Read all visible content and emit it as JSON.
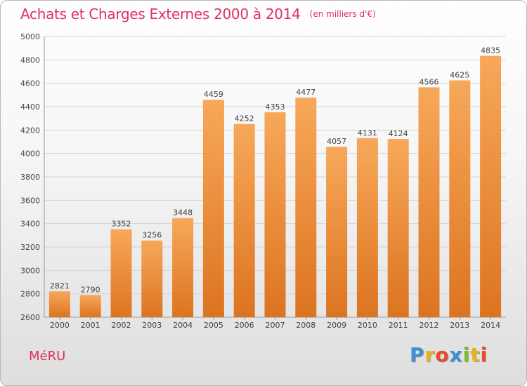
{
  "title": "Achats et Charges Externes 2000 à 2014",
  "subtitle": "(en milliers d'€)",
  "city": "MéRU",
  "logo": {
    "text": "Proxiti",
    "letters": [
      {
        "ch": "P",
        "color": "#3a8fd6"
      },
      {
        "ch": "r",
        "color": "#e8b21a"
      },
      {
        "ch": "o",
        "color": "#e84a2a"
      },
      {
        "ch": "x",
        "color": "#3a8fd6"
      },
      {
        "ch": "i",
        "color": "#7cbc2a"
      },
      {
        "ch": "t",
        "color": "#e8b21a"
      },
      {
        "ch": "i",
        "color": "#e84a2a"
      }
    ]
  },
  "colors": {
    "accent": "#e0315e",
    "bar_light": "#f7a85a",
    "bar_dark": "#dc7420",
    "grid": "#d4d4d4",
    "axis": "#9a9a9a"
  },
  "chart_data": {
    "type": "bar",
    "categories": [
      "2000",
      "2001",
      "2002",
      "2003",
      "2004",
      "2005",
      "2006",
      "2007",
      "2008",
      "2009",
      "2010",
      "2011",
      "2012",
      "2013",
      "2014"
    ],
    "values": [
      2821,
      2790,
      3352,
      3256,
      3448,
      4459,
      4252,
      4353,
      4477,
      4057,
      4131,
      4124,
      4566,
      4625,
      4835
    ],
    "ylim": [
      2600,
      5000
    ],
    "yticks": [
      2600,
      2800,
      3000,
      3200,
      3400,
      3600,
      3800,
      4000,
      4200,
      4400,
      4600,
      4800,
      5000
    ],
    "grid": true,
    "data_labels": true
  }
}
